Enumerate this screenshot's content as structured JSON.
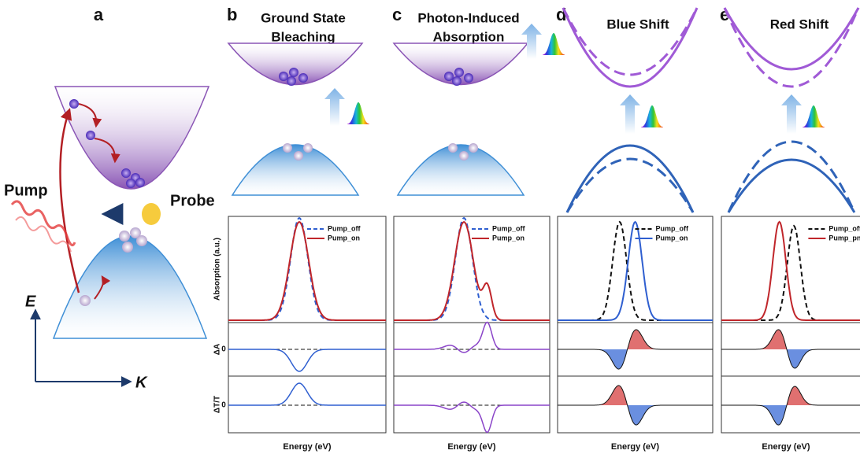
{
  "panel_a": {
    "label": "a",
    "pump": "Pump",
    "probe": "Probe",
    "axis_e": "E",
    "axis_k": "K"
  },
  "panels": [
    {
      "label": "b",
      "title": [
        "Ground State",
        "Bleaching"
      ],
      "legend": [
        "Pump_off",
        "Pump_on"
      ],
      "y_labels": [
        "Absorption (a.u.)",
        "ΔA",
        "ΔT/T"
      ],
      "zero_labels": [
        "0",
        "0"
      ],
      "x_label": "Energy (eV)"
    },
    {
      "label": "c",
      "title": [
        "Photon-Induced",
        "Absorption"
      ],
      "legend": [
        "Pump_off",
        "Pump_on"
      ],
      "x_label": "Energy (eV)"
    },
    {
      "label": "d",
      "title": [
        "Blue Shift"
      ],
      "legend": [
        "Pump_off",
        "Pump_on"
      ],
      "x_label": "Energy (eV)"
    },
    {
      "label": "e",
      "title": [
        "Red Shift"
      ],
      "legend": [
        "Pump_off",
        "Pump_pn"
      ],
      "x_label": "Energy (eV)"
    }
  ]
}
